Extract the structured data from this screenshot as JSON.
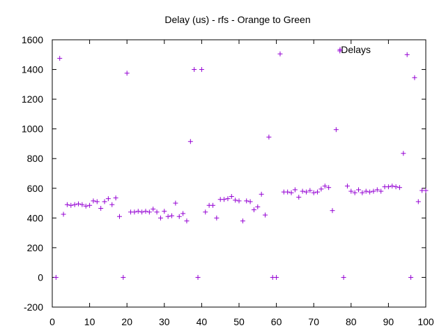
{
  "chart_data": {
    "type": "scatter",
    "title": "Delay (us) - rfs - Orange to Green",
    "xlabel": "",
    "ylabel": "",
    "xlim": [
      0,
      100
    ],
    "ylim": [
      -200,
      1600
    ],
    "xticks": [
      0,
      10,
      20,
      30,
      40,
      50,
      60,
      70,
      80,
      90,
      100
    ],
    "yticks": [
      -200,
      0,
      200,
      400,
      600,
      800,
      1000,
      1200,
      1400,
      1600
    ],
    "grid": false,
    "legend_position": "top-right",
    "marker": "plus",
    "colors": {
      "series": "#9400d3",
      "axis": "#000000"
    },
    "series": [
      {
        "name": "Delays",
        "x": [
          1,
          2,
          3,
          4,
          5,
          6,
          7,
          8,
          9,
          10,
          11,
          12,
          13,
          14,
          15,
          16,
          17,
          18,
          19,
          20,
          21,
          22,
          23,
          24,
          25,
          26,
          27,
          28,
          29,
          30,
          31,
          32,
          33,
          34,
          35,
          36,
          37,
          38,
          39,
          40,
          41,
          42,
          43,
          44,
          45,
          46,
          47,
          48,
          49,
          50,
          51,
          52,
          53,
          54,
          55,
          56,
          57,
          58,
          59,
          60,
          61,
          62,
          63,
          64,
          65,
          66,
          67,
          68,
          69,
          70,
          71,
          72,
          73,
          74,
          75,
          76,
          77,
          78,
          79,
          80,
          81,
          82,
          83,
          84,
          85,
          86,
          87,
          88,
          89,
          90,
          91,
          92,
          93,
          94,
          95,
          96,
          97,
          98,
          99,
          100
        ],
        "y": [
          0,
          1475,
          425,
          490,
          485,
          490,
          495,
          490,
          480,
          485,
          515,
          510,
          465,
          510,
          530,
          490,
          535,
          410,
          0,
          1375,
          440,
          440,
          445,
          440,
          445,
          440,
          460,
          440,
          400,
          445,
          410,
          415,
          500,
          410,
          430,
          380,
          915,
          1400,
          0,
          1400,
          440,
          485,
          485,
          400,
          525,
          525,
          530,
          545,
          520,
          515,
          380,
          515,
          510,
          455,
          475,
          560,
          420,
          945,
          0,
          0,
          1505,
          575,
          575,
          570,
          590,
          540,
          580,
          575,
          585,
          570,
          575,
          595,
          615,
          605,
          450,
          995,
          1525,
          0,
          615,
          580,
          570,
          590,
          570,
          580,
          575,
          580,
          590,
          580,
          610,
          610,
          615,
          610,
          605,
          835,
          1500,
          0,
          1345,
          510,
          585,
          585
        ]
      }
    ]
  }
}
